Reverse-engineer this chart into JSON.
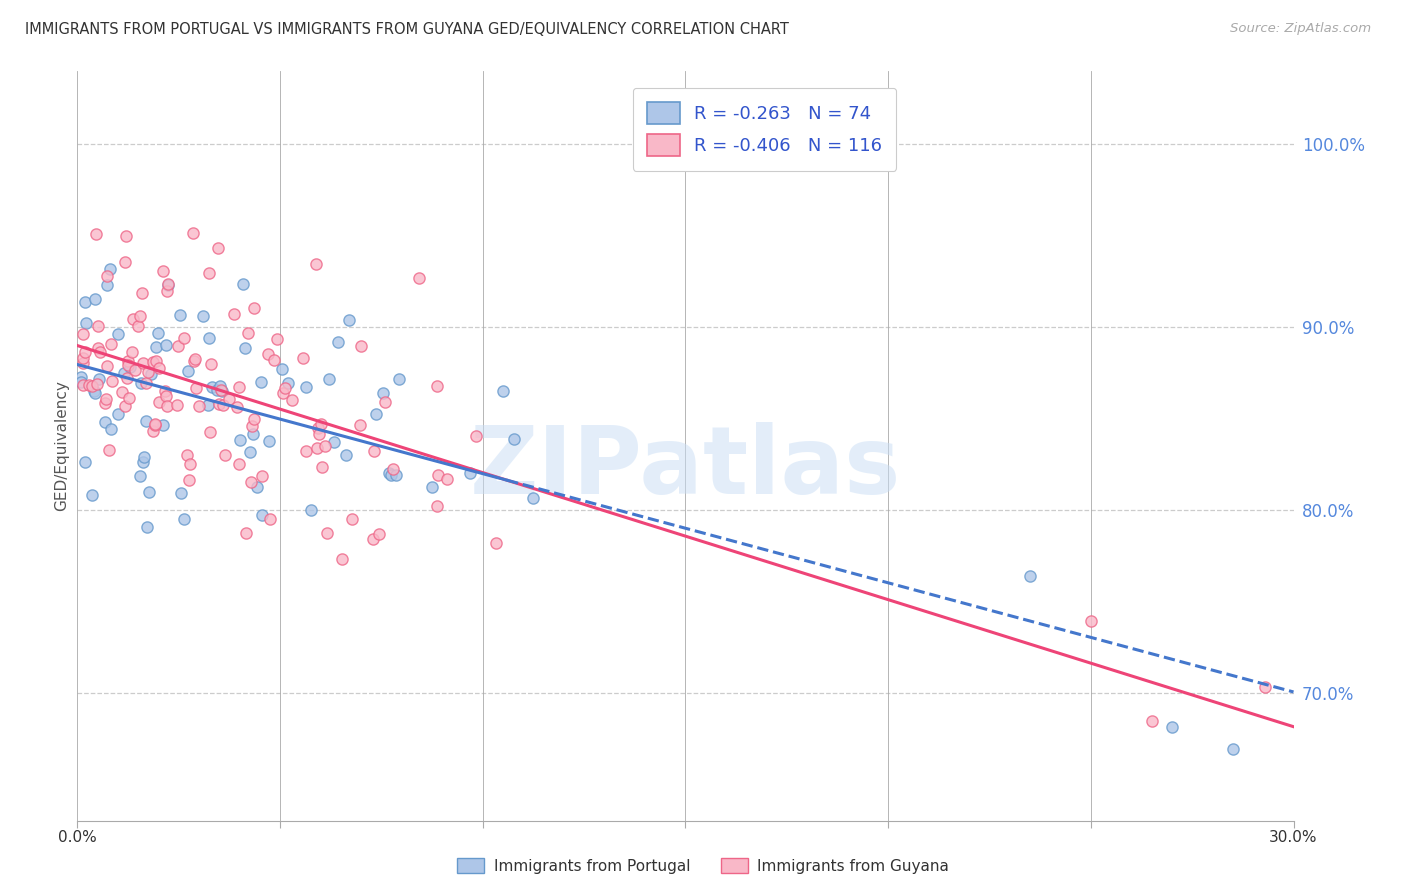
{
  "title": "IMMIGRANTS FROM PORTUGAL VS IMMIGRANTS FROM GUYANA GED/EQUIVALENCY CORRELATION CHART",
  "source": "Source: ZipAtlas.com",
  "ylabel": "GED/Equivalency",
  "portugal_color": "#aec6e8",
  "portugal_edge_color": "#6699cc",
  "guyana_color": "#f9b8c8",
  "guyana_edge_color": "#ee6688",
  "portugal_line_color": "#4477cc",
  "guyana_line_color": "#ee4477",
  "background_color": "#ffffff",
  "grid_color": "#cccccc",
  "right_tick_color": "#5588dd",
  "ytick_labels": [
    "70.0%",
    "80.0%",
    "90.0%",
    "100.0%"
  ],
  "ytick_values": [
    0.7,
    0.8,
    0.9,
    1.0
  ],
  "xlim": [
    0.0,
    0.3
  ],
  "ylim": [
    0.63,
    1.04
  ],
  "watermark_text": "ZIPatlas",
  "watermark_color": "#c8ddf5",
  "legend_label_color": "#3355cc",
  "portugal_R": "-0.263",
  "portugal_N": "74",
  "guyana_R": "-0.406",
  "guyana_N": "116"
}
